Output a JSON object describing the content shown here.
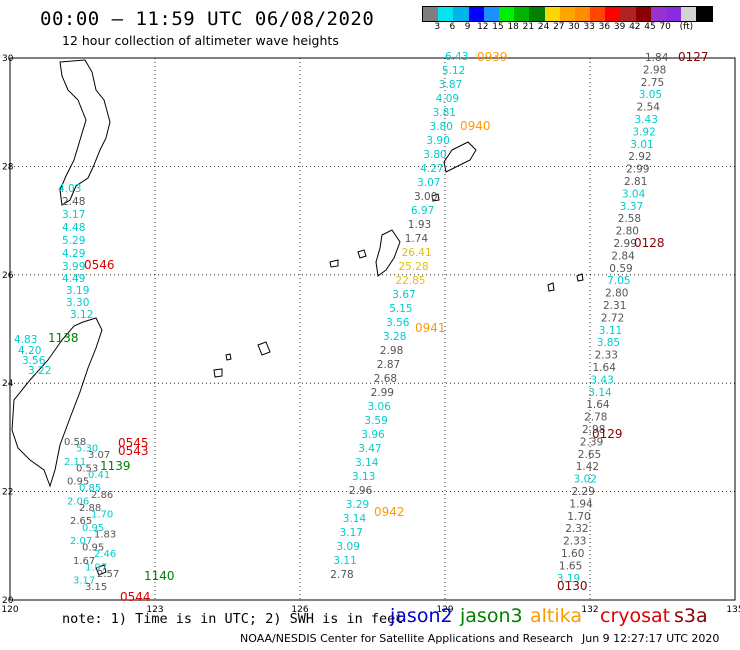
{
  "header": {
    "title": "00:00 – 11:59 UTC 06/08/2020",
    "subtitle": "12 hour collection of altimeter wave heights"
  },
  "colorbar": {
    "colors": [
      "#7f7f7f",
      "#00e5ee",
      "#00b2ee",
      "#0000ff",
      "#1e90ff",
      "#00ee00",
      "#00b400",
      "#008000",
      "#ffd700",
      "#ffa500",
      "#ff8c00",
      "#ff4500",
      "#ff0000",
      "#b22222",
      "#8b0000",
      "#9932cc",
      "#8a2be2",
      "#d3d3d3",
      "#000000"
    ],
    "labels": [
      "3",
      "6",
      "9",
      "12",
      "15",
      "18",
      "21",
      "24",
      "27",
      "30",
      "33",
      "36",
      "39",
      "42",
      "45",
      "70",
      "(ft)"
    ]
  },
  "axes": {
    "x_ticks": [
      "120",
      "123",
      "126",
      "129",
      "132",
      "135"
    ],
    "y_ticks": [
      "30",
      "28",
      "26",
      "24",
      "22",
      "20"
    ]
  },
  "colors": {
    "jason2": "#0000cc",
    "jason3": "#008000",
    "altika": "#ff9900",
    "cryosat": "#dd0000",
    "s3a": "#8b0000",
    "swh_cyan": "#00cccc",
    "swh_gray": "#555555",
    "swh_yellow": "#e6c000"
  },
  "tracks": {
    "cryosat": {
      "times": [
        "0545",
        "0546",
        "0544",
        "0543"
      ],
      "swh": [
        "4.03",
        "2.48",
        "3.17",
        "4.48",
        "5.29",
        "4.29",
        "3.99",
        "4.49",
        "3.19",
        "3.30",
        "3.12"
      ]
    },
    "jason3": {
      "times": [
        "1138",
        "1139",
        "1140"
      ],
      "swh": [
        "4.83",
        "4.20",
        "3.56",
        "3.22"
      ]
    },
    "coast_swh": [
      "0.58",
      "5.30",
      "3.07",
      "2.11",
      "0.53",
      "0.41",
      "0.95",
      "0.85",
      "2.86",
      "2.06",
      "2.88",
      "1.70",
      "2.65",
      "0.95",
      "1.83",
      "2.07",
      "0.95",
      "2.46",
      "1.67",
      "1.97",
      "2.57",
      "3.17",
      "3.15"
    ],
    "altika": {
      "times": [
        "0939",
        "0940",
        "0941",
        "0942"
      ],
      "swh": [
        "6.43",
        "5.12",
        "3.87",
        "4.09",
        "3.81",
        "3.80",
        "3.90",
        "3.80",
        "4.27",
        "3.07",
        "3.00",
        "6.97",
        "1.93",
        "1.74",
        "26.41",
        "25.28",
        "22.85",
        "3.67",
        "5.15",
        "3.56",
        "3.28",
        "2.98",
        "2.87",
        "2.68",
        "2.99",
        "3.06",
        "3.59",
        "3.96",
        "3.47",
        "3.14",
        "3.13",
        "2.96",
        "3.29",
        "3.14",
        "3.17",
        "3.09",
        "3.11",
        "2.78"
      ]
    },
    "s3a": {
      "times": [
        "0127",
        "0128",
        "0129",
        "0130"
      ],
      "swh": [
        "1.84",
        "2.98",
        "2.75",
        "3.05",
        "2.54",
        "3.43",
        "3.92",
        "3.01",
        "2.92",
        "2.99",
        "2.81",
        "3.04",
        "3.37",
        "2.58",
        "2.80",
        "2.99",
        "2.84",
        "0.59",
        "7.05",
        "2.80",
        "2.31",
        "2.72",
        "3.11",
        "3.85",
        "2.33",
        "1.64",
        "3.43",
        "3.14",
        "1.64",
        "2.78",
        "2.98",
        "2.39",
        "2.65",
        "1.42",
        "3.02",
        "2.29",
        "1.94",
        "1.70",
        "2.32",
        "2.33",
        "1.60",
        "1.65",
        "3.19"
      ]
    }
  },
  "footer": {
    "note": "note: 1) Time is in UTC; 2) SWH is in feet",
    "satellites": [
      "jason2",
      "jason3",
      "altika",
      "cryosat",
      "s3a"
    ],
    "credit": "NOAA/NESDIS Center for Satellite Applications and Research",
    "timestamp": "Jun  9 12:27:17 UTC 2020"
  }
}
